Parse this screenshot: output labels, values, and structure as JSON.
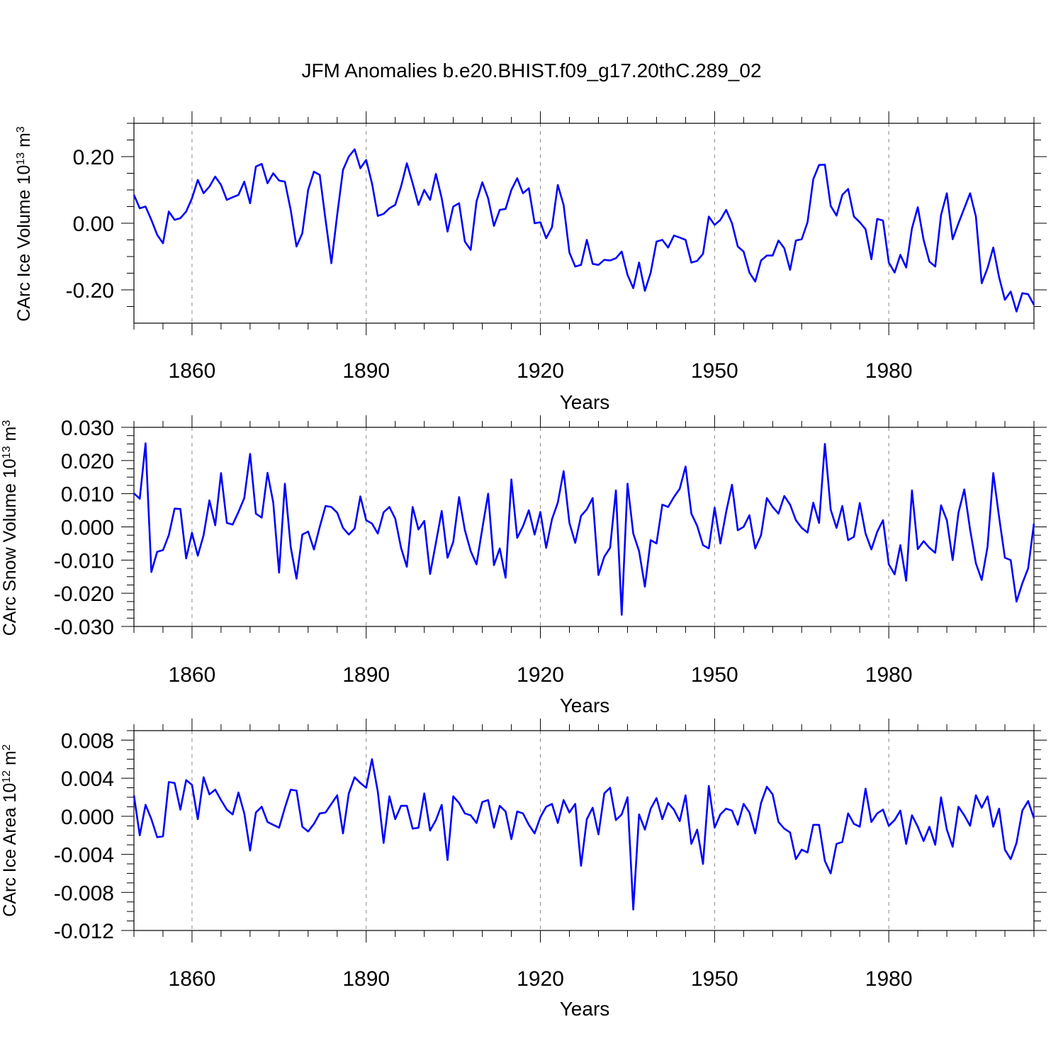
{
  "title": "JFM Anomalies b.e20.BHIST.f09_g17.20thC.289_02",
  "chart_data": [
    {
      "type": "line",
      "ylabel": "CArc Ice Volume",
      "yunit_base": "10",
      "yunit_exp": "13",
      "yunit_suffix": "m",
      "yunit_suffix_exp": "3",
      "xlabel": "Years",
      "xlim": [
        1850,
        2005
      ],
      "ylim": [
        -0.3,
        0.3
      ],
      "xticks": [
        "1860",
        "1890",
        "1920",
        "1950",
        "1980"
      ],
      "yticks": [
        "0.20",
        "0.00",
        "-0.20"
      ],
      "series": [
        {
          "name": "CArc Ice Volume",
          "color": "#0000ff",
          "start_year": 1850,
          "values": [
            0.085,
            0.045,
            0.05,
            0.01,
            -0.035,
            -0.06,
            0.035,
            0.01,
            0.015,
            0.035,
            0.075,
            0.13,
            0.09,
            0.11,
            0.14,
            0.115,
            0.07,
            0.078,
            0.085,
            0.125,
            0.06,
            0.17,
            0.178,
            0.12,
            0.15,
            0.128,
            0.125,
            0.04,
            -0.07,
            -0.03,
            0.1,
            0.155,
            0.145,
            0.01,
            -0.12,
            0.025,
            0.16,
            0.2,
            0.222,
            0.165,
            0.19,
            0.12,
            0.022,
            0.028,
            0.045,
            0.055,
            0.11,
            0.18,
            0.12,
            0.055,
            0.1,
            0.07,
            0.148,
            0.075,
            -0.025,
            0.05,
            0.06,
            -0.055,
            -0.08,
            0.065,
            0.123,
            0.075,
            -0.008,
            0.04,
            0.043,
            0.1,
            0.135,
            0.09,
            0.105,
            0.0,
            0.003,
            -0.045,
            -0.012,
            0.115,
            0.055,
            -0.088,
            -0.13,
            -0.125,
            -0.05,
            -0.122,
            -0.125,
            -0.11,
            -0.112,
            -0.105,
            -0.085,
            -0.155,
            -0.195,
            -0.118,
            -0.203,
            -0.148,
            -0.055,
            -0.05,
            -0.073,
            -0.037,
            -0.043,
            -0.05,
            -0.118,
            -0.113,
            -0.092,
            0.02,
            -0.005,
            0.01,
            0.04,
            0.0,
            -0.07,
            -0.085,
            -0.148,
            -0.175,
            -0.112,
            -0.097,
            -0.097,
            -0.052,
            -0.075,
            -0.14,
            -0.052,
            -0.048,
            0.003,
            0.132,
            0.175,
            0.176,
            0.052,
            0.023,
            0.085,
            0.103,
            0.02,
            0.003,
            -0.018,
            -0.108,
            0.013,
            0.008,
            -0.118,
            -0.148,
            -0.095,
            -0.133,
            -0.015,
            0.048,
            -0.05,
            -0.115,
            -0.13,
            0.025,
            0.09,
            -0.048,
            0.0,
            0.045,
            0.09,
            0.02,
            -0.18,
            -0.135,
            -0.073,
            -0.162,
            -0.23,
            -0.205,
            -0.265,
            -0.21,
            -0.213,
            -0.245
          ]
        }
      ]
    },
    {
      "type": "line",
      "ylabel": "CArc Snow Volume",
      "yunit_base": "10",
      "yunit_exp": "13",
      "yunit_suffix": "m",
      "yunit_suffix_exp": "3",
      "xlabel": "Years",
      "xlim": [
        1850,
        2005
      ],
      "ylim": [
        -0.03,
        0.03
      ],
      "xticks": [
        "1860",
        "1890",
        "1920",
        "1950",
        "1980"
      ],
      "yticks": [
        "0.030",
        "0.020",
        "0.010",
        "0.000",
        "-0.010",
        "-0.020",
        "-0.030"
      ],
      "series": [
        {
          "name": "CArc Snow Volume",
          "color": "#0000ff",
          "start_year": 1850,
          "values": [
            0.0101,
            0.0085,
            0.0252,
            -0.0136,
            -0.0075,
            -0.007,
            -0.0025,
            0.0055,
            0.0054,
            -0.0095,
            -0.0018,
            -0.0087,
            -0.0025,
            0.008,
            0.0005,
            0.0162,
            0.0012,
            0.0007,
            0.0045,
            0.0087,
            0.022,
            0.004,
            0.0028,
            0.0163,
            0.0073,
            -0.0138,
            0.013,
            -0.006,
            -0.0156,
            -0.0023,
            -0.0014,
            -0.0068,
            0.0,
            0.0063,
            0.006,
            0.0043,
            -0.0003,
            -0.0023,
            -0.0005,
            0.0092,
            0.002,
            0.001,
            -0.002,
            0.0044,
            0.006,
            0.0025,
            -0.0063,
            -0.012,
            0.006,
            -0.0008,
            0.0018,
            -0.0142,
            -0.0048,
            0.0048,
            -0.0093,
            -0.0045,
            0.009,
            -0.001,
            -0.0073,
            -0.0113,
            -0.0005,
            0.01,
            -0.0115,
            -0.0065,
            -0.0153,
            0.0143,
            -0.0033,
            0.0002,
            0.005,
            -0.0023,
            0.0045,
            -0.0063,
            0.0023,
            0.0073,
            0.0168,
            0.0012,
            -0.0048,
            0.0033,
            0.0053,
            0.0087,
            -0.0145,
            -0.009,
            -0.0063,
            0.011,
            -0.0265,
            0.013,
            -0.002,
            -0.0073,
            -0.018,
            -0.004,
            -0.005,
            0.0067,
            0.006,
            0.009,
            0.0115,
            0.0182,
            0.004,
            0.0003,
            -0.0055,
            -0.0065,
            0.0058,
            -0.005,
            0.0045,
            0.0127,
            -0.001,
            0.0,
            0.0035,
            -0.0065,
            -0.0025,
            0.0087,
            0.006,
            0.004,
            0.0093,
            0.0067,
            0.002,
            -0.0003,
            -0.0017,
            0.0073,
            0.0012,
            0.025,
            0.0052,
            -0.0003,
            0.0063,
            -0.004,
            -0.003,
            0.0072,
            -0.002,
            -0.0068,
            -0.0015,
            0.002,
            -0.0113,
            -0.0143,
            -0.0055,
            -0.0162,
            0.011,
            -0.0067,
            -0.0043,
            -0.0063,
            -0.0078,
            0.0065,
            0.002,
            -0.01,
            0.0043,
            0.0113,
            -0.0008,
            -0.011,
            -0.016,
            -0.006,
            0.0162,
            0.003,
            -0.0093,
            -0.01,
            -0.0225,
            -0.017,
            -0.0125,
            0.001
          ]
        }
      ]
    },
    {
      "type": "line",
      "ylabel": "CArc Ice Area",
      "yunit_base": "10",
      "yunit_exp": "12",
      "yunit_suffix": "m",
      "yunit_suffix_exp": "2",
      "xlabel": "Years",
      "xlim": [
        1850,
        2005
      ],
      "ylim": [
        -0.012,
        0.009
      ],
      "xticks": [
        "1860",
        "1890",
        "1920",
        "1950",
        "1980"
      ],
      "yticks": [
        "0.008",
        "0.004",
        "0.000",
        "-0.004",
        "-0.008",
        "-0.012"
      ],
      "series": [
        {
          "name": "CArc Ice Area",
          "color": "#0000ff",
          "start_year": 1850,
          "values": [
            0.0022,
            -0.002,
            0.0012,
            -0.0003,
            -0.0022,
            -0.0021,
            0.0036,
            0.0035,
            0.0007,
            0.0038,
            0.0033,
            -0.0003,
            0.0041,
            0.0023,
            0.0028,
            0.0017,
            0.0007,
            0.0002,
            0.0025,
            0.0003,
            -0.0036,
            0.0004,
            0.001,
            -0.0006,
            -0.0009,
            -0.0012,
            0.0009,
            0.0028,
            0.0027,
            -0.0011,
            -0.0016,
            -0.0008,
            0.0003,
            0.0004,
            0.0013,
            0.0022,
            -0.0018,
            0.0024,
            0.0041,
            0.0035,
            0.003,
            0.006,
            0.0026,
            -0.0028,
            0.0021,
            -0.0003,
            0.0011,
            0.0011,
            -0.0013,
            -0.0012,
            0.0024,
            -0.0015,
            -0.0004,
            0.0012,
            -0.0046,
            0.0021,
            0.0014,
            0.0003,
            0.0001,
            -0.0007,
            0.0015,
            0.0017,
            -0.0012,
            0.0011,
            0.0005,
            -0.0024,
            0.0005,
            0.0003,
            -0.0009,
            -0.0018,
            -0.0001,
            0.001,
            0.0013,
            -0.0007,
            0.0017,
            0.0004,
            0.0013,
            -0.0052,
            -0.0003,
            0.0009,
            -0.0019,
            0.0024,
            0.003,
            -0.0004,
            0.0002,
            0.002,
            -0.0098,
            0.0002,
            -0.0014,
            0.0008,
            0.0019,
            -0.0003,
            0.0014,
            0.0007,
            -0.0005,
            0.0022,
            -0.0029,
            -0.0014,
            -0.005,
            0.0032,
            -0.0012,
            0.0002,
            0.0008,
            0.0006,
            -0.0009,
            0.0013,
            0.0004,
            -0.0018,
            0.0014,
            0.0031,
            0.0023,
            -0.0006,
            -0.0013,
            -0.0017,
            -0.0045,
            -0.0035,
            -0.0038,
            -0.0009,
            -0.0009,
            -0.0047,
            -0.006,
            -0.0029,
            -0.0027,
            0.0003,
            -0.0008,
            -0.0011,
            0.0029,
            -0.0006,
            0.0003,
            0.0007,
            -0.001,
            -0.0004,
            0.0006,
            -0.0029,
            0.0001,
            -0.0011,
            -0.0026,
            -0.0011,
            -0.003,
            0.002,
            -0.0014,
            -0.0032,
            0.001,
            0.0001,
            -0.001,
            0.0022,
            0.0009,
            0.0021,
            -0.0011,
            0.0008,
            -0.0035,
            -0.0045,
            -0.0028,
            0.0006,
            0.0016,
            -0.0002
          ]
        }
      ]
    }
  ]
}
